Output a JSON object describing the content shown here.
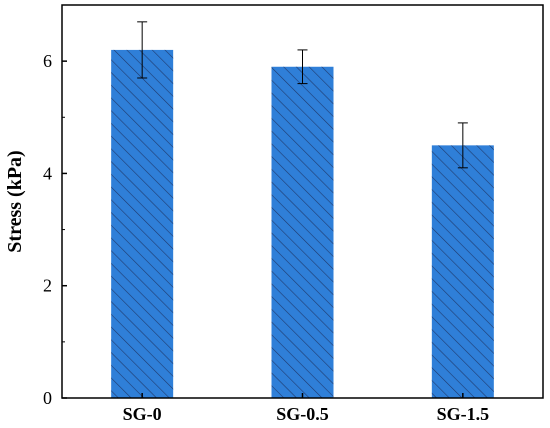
{
  "chart_data": {
    "type": "bar",
    "title": "",
    "xlabel": "",
    "ylabel": "Stress (kPa)",
    "categories": [
      "SG-0",
      "SG-0.5",
      "SG-1.5"
    ],
    "values": [
      6.2,
      5.9,
      4.5
    ],
    "errors": [
      0.5,
      0.3,
      0.4
    ],
    "ylim": [
      0,
      7
    ],
    "yticks": [
      0,
      2,
      4,
      6
    ],
    "ytick_labels": [
      "0",
      "2",
      "4",
      "6"
    ],
    "grid": false,
    "bar_color": "#2f7fd8",
    "hatch_color": "#1f3a6e",
    "hatch": "diagonal"
  }
}
